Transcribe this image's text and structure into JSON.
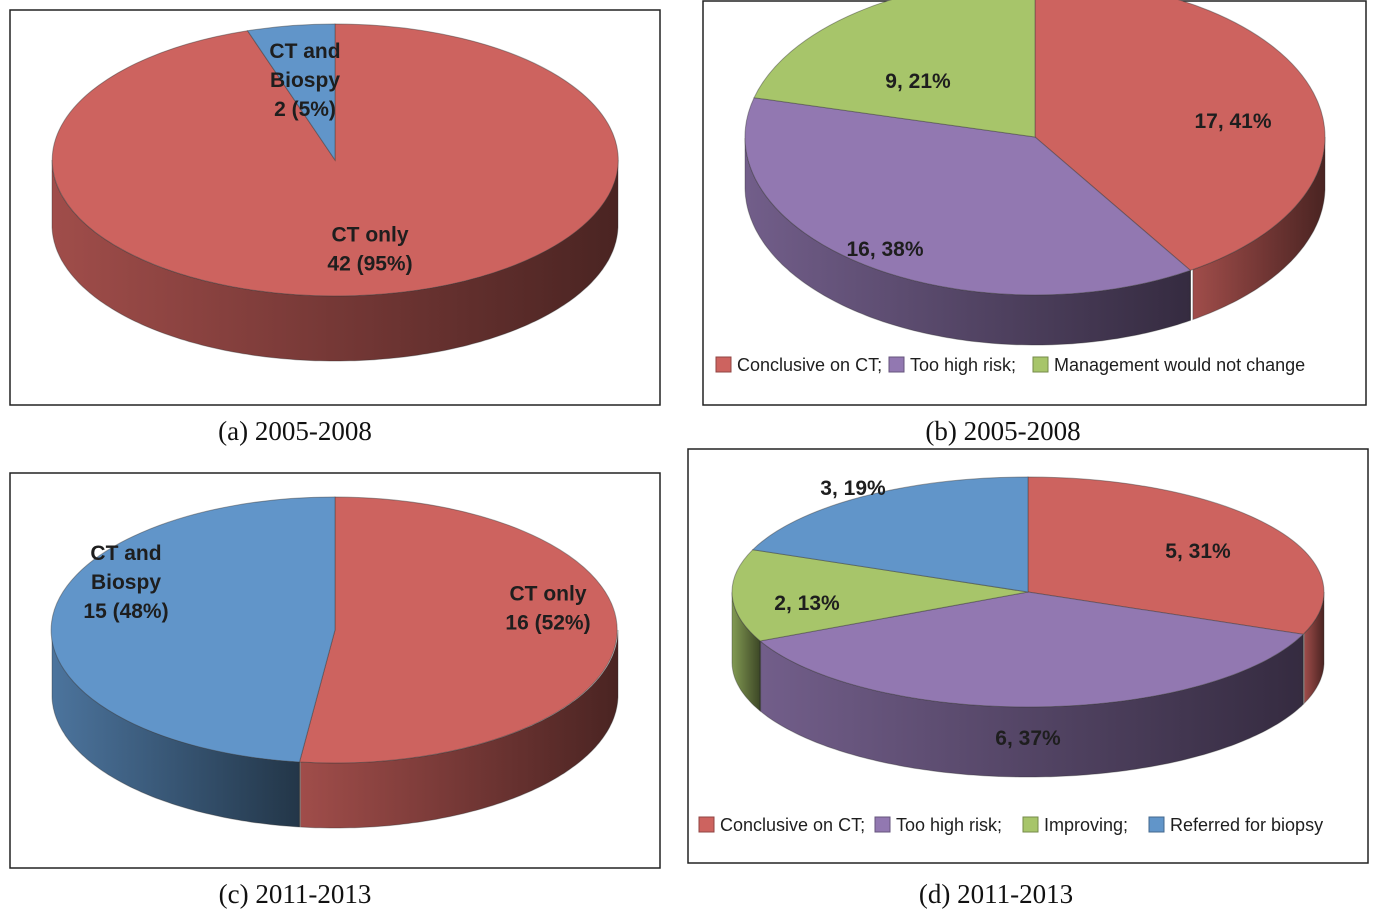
{
  "colors": {
    "red": "#cd635f",
    "blue": "#6195c9",
    "purple": "#9278b1",
    "green": "#a7c56a",
    "frame": "#222222"
  },
  "chart_data": [
    {
      "id": "a",
      "type": "pie",
      "caption": "(a) 2005-2008",
      "slices": [
        {
          "label_lines": [
            "CT only",
            "42 (95%)"
          ],
          "value": 42,
          "percent": 95,
          "color": "red"
        },
        {
          "label_lines": [
            "CT and",
            "Biospy",
            "2 (5%)"
          ],
          "value": 2,
          "percent": 5,
          "color": "blue"
        }
      ],
      "legend": []
    },
    {
      "id": "b",
      "type": "pie",
      "caption": "(b) 2005-2008",
      "slices": [
        {
          "label_lines": [
            "17, 41%"
          ],
          "value": 17,
          "percent": 41,
          "color": "red"
        },
        {
          "label_lines": [
            "16, 38%"
          ],
          "value": 16,
          "percent": 38,
          "color": "purple"
        },
        {
          "label_lines": [
            "9, 21%"
          ],
          "value": 9,
          "percent": 21,
          "color": "green"
        }
      ],
      "legend": [
        {
          "label": "Conclusive on CT;",
          "color": "red"
        },
        {
          "label": "Too high risk;",
          "color": "purple"
        },
        {
          "label": "Management would not change",
          "color": "green"
        }
      ]
    },
    {
      "id": "c",
      "type": "pie",
      "caption": "(c) 2011-2013",
      "slices": [
        {
          "label_lines": [
            "CT only",
            "16 (52%)"
          ],
          "value": 16,
          "percent": 52,
          "color": "red"
        },
        {
          "label_lines": [
            "CT and",
            "Biospy",
            "15 (48%)"
          ],
          "value": 15,
          "percent": 48,
          "color": "blue"
        }
      ],
      "legend": []
    },
    {
      "id": "d",
      "type": "pie",
      "caption": "(d) 2011-2013",
      "slices": [
        {
          "label_lines": [
            "5, 31%"
          ],
          "value": 5,
          "percent": 31,
          "color": "red"
        },
        {
          "label_lines": [
            "6, 37%"
          ],
          "value": 6,
          "percent": 37,
          "color": "purple"
        },
        {
          "label_lines": [
            "2, 13%"
          ],
          "value": 2,
          "percent": 13,
          "color": "green"
        },
        {
          "label_lines": [
            "3, 19%"
          ],
          "value": 3,
          "percent": 19,
          "color": "blue"
        }
      ],
      "legend": [
        {
          "label": "Conclusive on CT;",
          "color": "red"
        },
        {
          "label": "Too high risk;",
          "color": "purple"
        },
        {
          "label": "Improving;",
          "color": "green"
        },
        {
          "label": "Referred for biopsy",
          "color": "blue"
        }
      ]
    }
  ]
}
